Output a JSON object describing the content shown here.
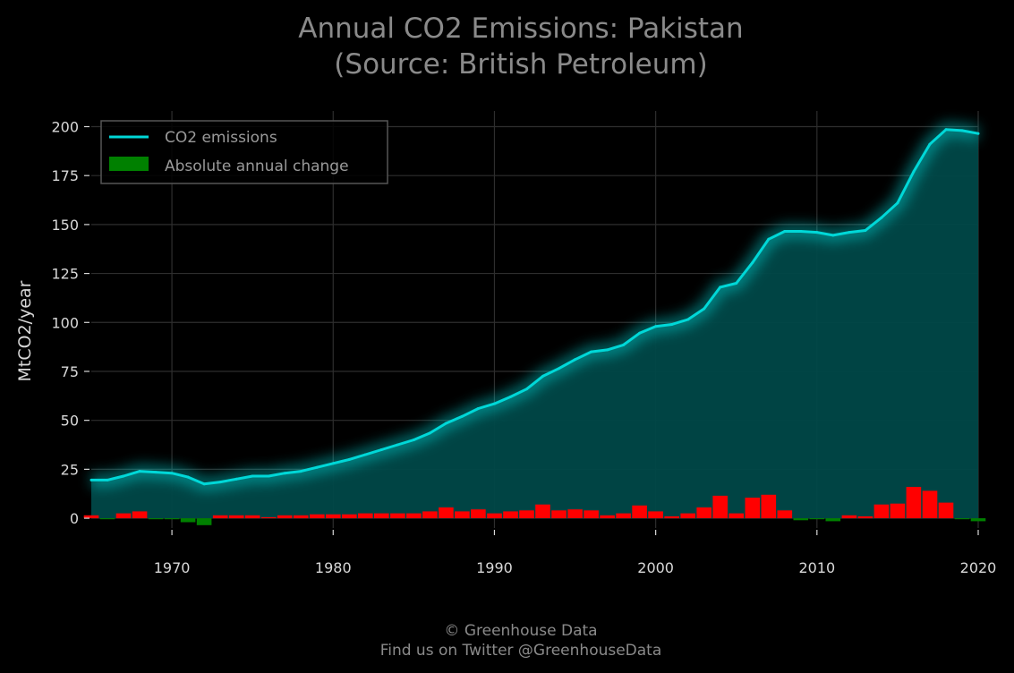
{
  "chart_data": {
    "type": "line",
    "title_line1": "Annual CO2 Emissions: Pakistan",
    "title_line2": "(Source: British Petroleum)",
    "ylabel": "MtCO2/year",
    "xlabel": "",
    "xlim": [
      1965,
      2020
    ],
    "ylim": [
      -5,
      208
    ],
    "x_ticks": [
      1970,
      1980,
      1990,
      2000,
      2010,
      2020
    ],
    "y_ticks": [
      0,
      25,
      50,
      75,
      100,
      125,
      150,
      175,
      200
    ],
    "grid": true,
    "legend_position": "top-left",
    "colors": {
      "background": "#000000",
      "line": "#00d8d8",
      "fill": "#004848",
      "increase": "#ff0000",
      "decrease": "#008000",
      "grid": "#2e2e2e"
    },
    "series": [
      {
        "name": "CO2 emissions",
        "x": [
          1965,
          1966,
          1967,
          1968,
          1969,
          1970,
          1971,
          1972,
          1973,
          1974,
          1975,
          1976,
          1977,
          1978,
          1979,
          1980,
          1981,
          1982,
          1983,
          1984,
          1985,
          1986,
          1987,
          1988,
          1989,
          1990,
          1991,
          1992,
          1993,
          1994,
          1995,
          1996,
          1997,
          1998,
          1999,
          2000,
          2001,
          2002,
          2003,
          2004,
          2005,
          2006,
          2007,
          2008,
          2009,
          2010,
          2011,
          2012,
          2013,
          2014,
          2015,
          2016,
          2017,
          2018,
          2019,
          2020
        ],
        "values": [
          19.5,
          19.5,
          21.5,
          24,
          23.5,
          23,
          21,
          17.5,
          18.5,
          20,
          21.5,
          21.5,
          23,
          24,
          26,
          28,
          30,
          32.5,
          35,
          37.5,
          40,
          43.5,
          48.5,
          52,
          56,
          58.5,
          62,
          66,
          72.5,
          76.5,
          81,
          85,
          86,
          88.5,
          94.5,
          98,
          99,
          101.5,
          107,
          118,
          120,
          130.5,
          142.5,
          146.5,
          146.5,
          146,
          144.5,
          146,
          147,
          153.5,
          161,
          177,
          191,
          198.5,
          198,
          196.5
        ]
      },
      {
        "name": "Absolute annual change",
        "x": [
          1965,
          1966,
          1967,
          1968,
          1969,
          1970,
          1971,
          1972,
          1973,
          1974,
          1975,
          1976,
          1977,
          1978,
          1979,
          1980,
          1981,
          1982,
          1983,
          1984,
          1985,
          1986,
          1987,
          1988,
          1989,
          1990,
          1991,
          1992,
          1993,
          1994,
          1995,
          1996,
          1997,
          1998,
          1999,
          2000,
          2001,
          2002,
          2003,
          2004,
          2005,
          2006,
          2007,
          2008,
          2009,
          2010,
          2011,
          2012,
          2013,
          2014,
          2015,
          2016,
          2017,
          2018,
          2019,
          2020
        ],
        "values": [
          1.5,
          -0.5,
          2.5,
          3.5,
          -0.5,
          -0.5,
          -2,
          -3.5,
          1.5,
          1.5,
          1.5,
          0.5,
          1.5,
          1.5,
          2,
          2,
          2,
          2.5,
          2.5,
          2.5,
          2.5,
          3.5,
          5.5,
          3.5,
          4.5,
          2.5,
          3.5,
          4,
          7,
          4,
          4.5,
          4,
          1.5,
          2.5,
          6.5,
          3.5,
          1,
          2.5,
          5.5,
          11.5,
          2.5,
          10.5,
          12,
          4,
          -1,
          -0.5,
          -1.5,
          1.5,
          1,
          7,
          7.5,
          16,
          14,
          8,
          -0.5,
          -1.5
        ]
      }
    ]
  },
  "footer": {
    "line1": "© Greenhouse Data",
    "line2": "Find us on Twitter @GreenhouseData"
  }
}
